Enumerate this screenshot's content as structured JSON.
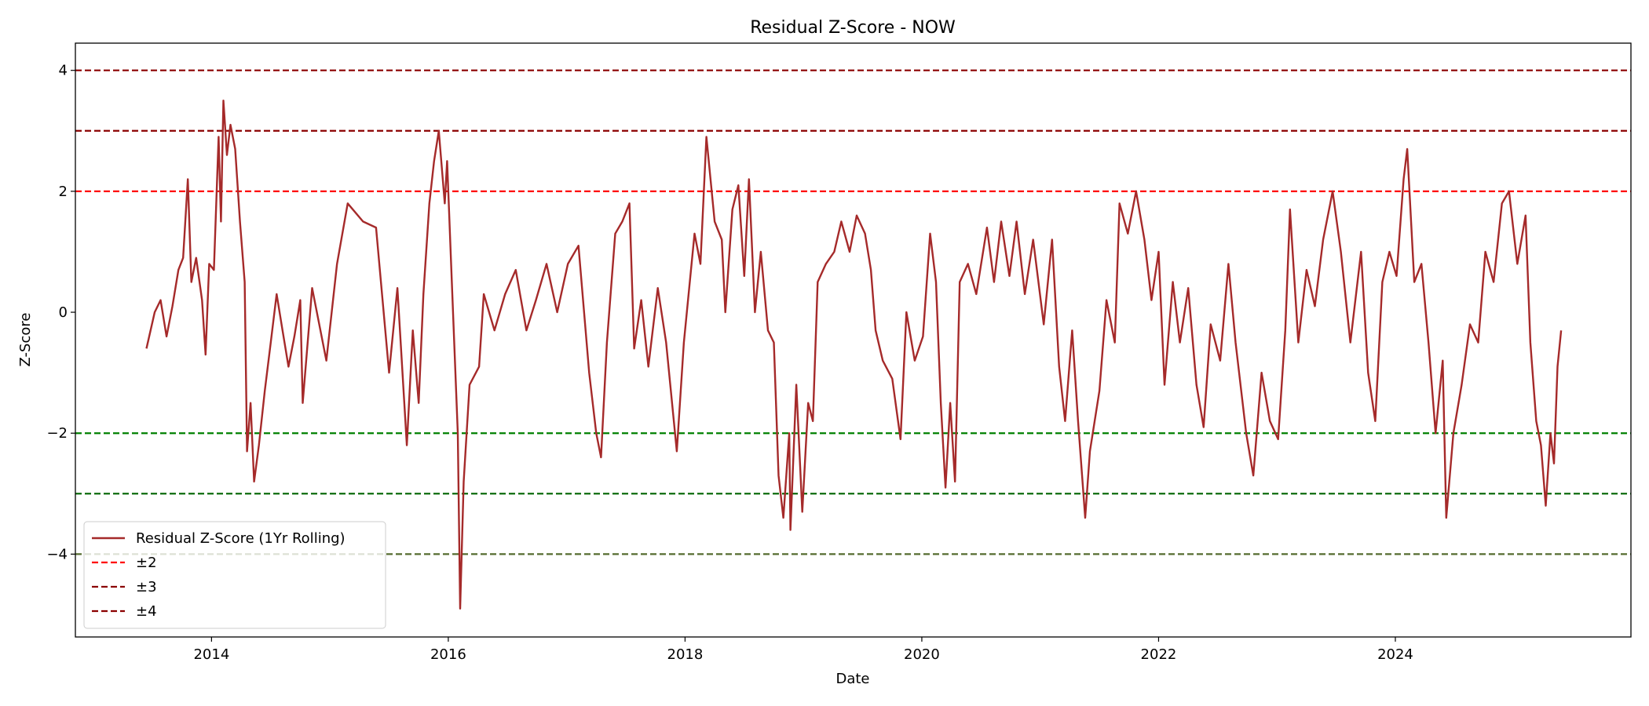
{
  "chart_data": {
    "type": "line",
    "title": "Residual Z-Score - NOW",
    "xlabel": "Date",
    "ylabel": "Z-Score",
    "xlim": [
      2012.85,
      2025.99
    ],
    "xticks": [
      2014,
      2016,
      2018,
      2020,
      2022,
      2024
    ],
    "ylim": [
      -5.37,
      4.45
    ],
    "yticks": [
      {
        "value": -4,
        "label": "−4"
      },
      {
        "value": -2,
        "label": "−2"
      },
      0,
      2,
      4
    ],
    "legend": "lower left",
    "x": [
      2013.45,
      2013.52,
      2013.57,
      2013.62,
      2013.67,
      2013.72,
      2013.76,
      2013.8,
      2013.83,
      2013.87,
      2013.92,
      2013.95,
      2013.98,
      2014.02,
      2014.06,
      2014.08,
      2014.1,
      2014.13,
      2014.16,
      2014.2,
      2014.24,
      2014.28,
      2014.3,
      2014.33,
      2014.36,
      2014.4,
      2014.45,
      2014.5,
      2014.55,
      2014.6,
      2014.65,
      2014.7,
      2014.75,
      2014.77,
      2014.85,
      2014.97,
      2015.06,
      2015.15,
      2015.28,
      2015.39,
      2015.5,
      2015.57,
      2015.65,
      2015.7,
      2015.75,
      2015.79,
      2015.84,
      2015.88,
      2015.92,
      2015.97,
      2015.99,
      2016.03,
      2016.08,
      2016.1,
      2016.13,
      2016.18,
      2016.26,
      2016.3,
      2016.39,
      2016.48,
      2016.57,
      2016.66,
      2016.74,
      2016.83,
      2016.92,
      2017.01,
      2017.1,
      2017.19,
      2017.25,
      2017.29,
      2017.34,
      2017.41,
      2017.47,
      2017.53,
      2017.57,
      2017.63,
      2017.69,
      2017.77,
      2017.84,
      2017.93,
      2017.99,
      2018.08,
      2018.13,
      2018.18,
      2018.25,
      2018.31,
      2018.34,
      2018.4,
      2018.45,
      2018.5,
      2018.54,
      2018.59,
      2018.64,
      2018.7,
      2018.75,
      2018.79,
      2018.83,
      2018.88,
      2018.89,
      2018.94,
      2018.99,
      2019.04,
      2019.08,
      2019.12,
      2019.19,
      2019.26,
      2019.32,
      2019.39,
      2019.45,
      2019.52,
      2019.57,
      2019.61,
      2019.67,
      2019.75,
      2019.82,
      2019.87,
      2019.94,
      2020.01,
      2020.07,
      2020.12,
      2020.16,
      2020.2,
      2020.24,
      2020.28,
      2020.32,
      2020.39,
      2020.46,
      2020.55,
      2020.61,
      2020.67,
      2020.74,
      2020.8,
      2020.87,
      2020.94,
      2021.03,
      2021.1,
      2021.16,
      2021.21,
      2021.27,
      2021.32,
      2021.38,
      2021.42,
      2021.5,
      2021.56,
      2021.63,
      2021.67,
      2021.74,
      2021.81,
      2021.88,
      2021.94,
      2022.0,
      2022.05,
      2022.12,
      2022.18,
      2022.25,
      2022.32,
      2022.38,
      2022.44,
      2022.52,
      2022.59,
      2022.65,
      2022.74,
      2022.8,
      2022.87,
      2022.94,
      2023.01,
      2023.07,
      2023.11,
      2023.18,
      2023.25,
      2023.32,
      2023.39,
      2023.45,
      2023.47,
      2023.54,
      2023.62,
      2023.71,
      2023.77,
      2023.83,
      2023.89,
      2023.95,
      2024.01,
      2024.07,
      2024.1,
      2024.16,
      2024.22,
      2024.28,
      2024.34,
      2024.4,
      2024.43,
      2024.49,
      2024.56,
      2024.63,
      2024.7,
      2024.76,
      2024.83,
      2024.9,
      2024.96,
      2025.03,
      2025.1,
      2025.14,
      2025.19,
      2025.23,
      2025.27,
      2025.31,
      2025.34,
      2025.37,
      2025.4
    ],
    "series": [
      {
        "name": "Residual Z-Score (1Yr Rolling)",
        "color": "#a52a2a",
        "values": [
          -0.6,
          0.0,
          0.2,
          -0.4,
          0.1,
          0.7,
          0.9,
          2.2,
          0.5,
          0.9,
          0.2,
          -0.7,
          0.8,
          0.7,
          2.9,
          1.5,
          3.5,
          2.6,
          3.1,
          2.7,
          1.5,
          0.5,
          -2.3,
          -1.5,
          -2.8,
          -2.2,
          -1.3,
          -0.5,
          0.3,
          -0.3,
          -0.9,
          -0.4,
          0.2,
          -1.5,
          0.4,
          -0.8,
          0.8,
          1.8,
          1.5,
          1.4,
          -1.0,
          0.4,
          -2.2,
          -0.3,
          -1.5,
          0.3,
          1.8,
          2.5,
          3.0,
          1.8,
          2.5,
          0.5,
          -2.0,
          -4.9,
          -2.8,
          -1.2,
          -0.9,
          0.3,
          -0.3,
          0.3,
          0.7,
          -0.3,
          0.2,
          0.8,
          0.0,
          0.8,
          1.1,
          -1.0,
          -2.0,
          -2.4,
          -0.5,
          1.3,
          1.5,
          1.8,
          -0.6,
          0.2,
          -0.9,
          0.4,
          -0.5,
          -2.3,
          -0.5,
          1.3,
          0.8,
          2.9,
          1.5,
          1.2,
          0.0,
          1.7,
          2.1,
          0.6,
          2.2,
          0.0,
          1.0,
          -0.3,
          -0.5,
          -2.7,
          -3.4,
          -2.0,
          -3.6,
          -1.2,
          -3.3,
          -1.5,
          -1.8,
          0.5,
          0.8,
          1.0,
          1.5,
          1.0,
          1.6,
          1.3,
          0.7,
          -0.3,
          -0.8,
          -1.1,
          -2.1,
          0.0,
          -0.8,
          -0.4,
          1.3,
          0.5,
          -1.5,
          -2.9,
          -1.5,
          -2.8,
          0.5,
          0.8,
          0.3,
          1.4,
          0.5,
          1.5,
          0.6,
          1.5,
          0.3,
          1.2,
          -0.2,
          1.2,
          -0.9,
          -1.8,
          -0.3,
          -1.8,
          -3.4,
          -2.3,
          -1.3,
          0.2,
          -0.5,
          1.8,
          1.3,
          2.0,
          1.2,
          0.2,
          1.0,
          -1.2,
          0.5,
          -0.5,
          0.4,
          -1.2,
          -1.9,
          -0.2,
          -0.8,
          0.8,
          -0.5,
          -2.0,
          -2.7,
          -1.0,
          -1.8,
          -2.1,
          -0.3,
          1.7,
          -0.5,
          0.7,
          0.1,
          1.2,
          1.8,
          2.0,
          1.0,
          -0.5,
          1.0,
          -1.0,
          -1.8,
          0.5,
          1.0,
          0.6,
          2.2,
          2.7,
          0.5,
          0.8,
          -0.5,
          -2.0,
          -0.8,
          -3.4,
          -2.0,
          -1.2,
          -0.2,
          -0.5,
          1.0,
          0.5,
          1.8,
          2.0,
          0.8,
          1.6,
          -0.5,
          -1.8,
          -2.2,
          -3.2,
          -2.0,
          -2.5,
          -0.9,
          -0.3
        ]
      }
    ],
    "reference_lines": [
      {
        "name": "±2",
        "lines": [
          {
            "value": 2,
            "color": "#ff0000"
          },
          {
            "value": -2,
            "color": "#008000"
          }
        ]
      },
      {
        "name": "±3",
        "lines": [
          {
            "value": 3,
            "color": "#8b0000"
          },
          {
            "value": -3,
            "color": "#006400"
          }
        ]
      },
      {
        "name": "±4",
        "lines": [
          {
            "value": 4,
            "color": "#8b0000"
          },
          {
            "value": -4,
            "color": "#556b2f"
          }
        ]
      }
    ]
  }
}
